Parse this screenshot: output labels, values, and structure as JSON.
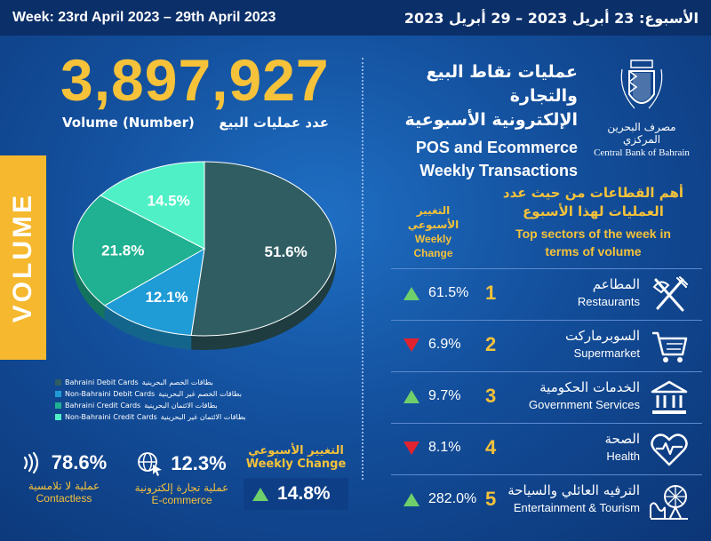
{
  "header": {
    "week_en": "Week: 23rd April 2023 – 29th April 2023",
    "week_ar": "الأسبوع: 23 أبريل 2023 – 29 أبريل 2023"
  },
  "volume": {
    "total": "3,897,927",
    "label_en": "Volume (Number)",
    "label_ar": "عدد عمليات البيع",
    "side_label": "VOLUME"
  },
  "title": {
    "ar_line1": "عمليات نقاط البيع والتجارة",
    "ar_line2": "الإلكترونية الأسبوعية",
    "en_line1": "POS and Ecommerce",
    "en_line2": "Weekly Transactions"
  },
  "logo": {
    "name_ar": "مصرف البحرين المركزي",
    "name_en": "Central Bank of Bahrain",
    "icon": "cbb-crest-icon"
  },
  "chart_data": {
    "type": "pie",
    "categories": [
      "Bahraini Debit Cards",
      "Non-Bahraini Debit Cards",
      "Bahraini Credit Cards",
      "Non-Bahraini Credit Cards"
    ],
    "categories_ar": [
      "بطاقات الخصم البحرينية",
      "بطاقات الخصم غير البحرينية",
      "بطاقات الائتمان البحرينية",
      "بطاقات الائتمان غير البحرينية"
    ],
    "values": [
      51.6,
      12.1,
      21.8,
      14.5
    ],
    "value_labels": [
      "51.6%",
      "12.1%",
      "21.8%",
      "14.5%"
    ],
    "colors": [
      "#2f5d62",
      "#1f9bd6",
      "#1fb191",
      "#4ff0c6"
    ],
    "legend_position": "bottom-left"
  },
  "payments": {
    "contactless": {
      "value": "78.6%",
      "label_ar": "عملية لا تلامسية",
      "label_en": "Contactless",
      "icon": "contactless-icon"
    },
    "ecommerce": {
      "value": "12.3%",
      "label_ar": "عملية تجارة إلكترونية",
      "label_en": "E-commerce",
      "icon": "globe-cursor-icon"
    },
    "weekly_change": {
      "label_ar": "التغيير الأسبوعي",
      "label_en": "Weekly Change",
      "value": "14.8%",
      "direction": "up"
    }
  },
  "sectors": {
    "heading_ar_line1": "أهم القطاعات من حيث عدد",
    "heading_ar_line2": "العمليات لهذا الأسبوع",
    "heading_en_line1": "Top sectors of the week in",
    "heading_en_line2": "terms of volume",
    "change_heading_ar_line1": "التغيير",
    "change_heading_ar_line2": "الأسبوعي",
    "change_heading_en_line1": "Weekly",
    "change_heading_en_line2": "Change",
    "items": [
      {
        "rank": "1",
        "name_ar": "المطاعم",
        "name_en": "Restaurants",
        "change": "61.5%",
        "direction": "up",
        "icon": "fork-knife-icon"
      },
      {
        "rank": "2",
        "name_ar": "السوبرماركت",
        "name_en": "Supermarket",
        "change": "6.9%",
        "direction": "down",
        "icon": "shopping-cart-icon"
      },
      {
        "rank": "3",
        "name_ar": "الخدمات الحكومية",
        "name_en": "Government Services",
        "change": "9.7%",
        "direction": "up",
        "icon": "government-building-icon"
      },
      {
        "rank": "4",
        "name_ar": "الصحة",
        "name_en": "Health",
        "change": "8.1%",
        "direction": "down",
        "icon": "heart-pulse-icon"
      },
      {
        "rank": "5",
        "name_ar": "الترفيه العائلي والسياحة",
        "name_en": "Entertainment & Tourism",
        "change": "282.0%",
        "direction": "up",
        "icon": "ferris-wheel-icon"
      }
    ]
  }
}
